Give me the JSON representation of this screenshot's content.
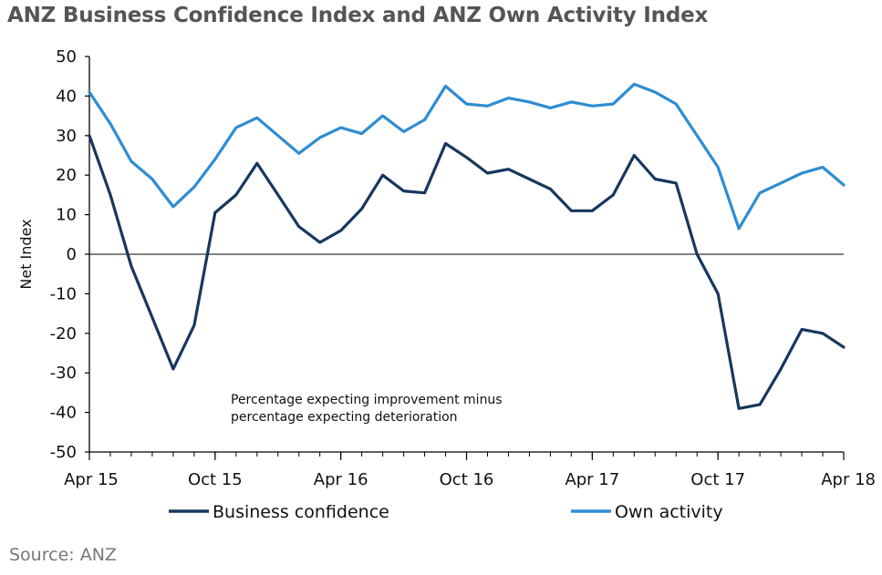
{
  "title": "ANZ Business Confidence Index and ANZ Own Activity Index",
  "source": "Source: ANZ",
  "chart_data": {
    "type": "line",
    "title": "ANZ Business Confidence Index and ANZ Own Activity Index",
    "xlabel": "",
    "ylabel": "Net Index",
    "ylim": [
      -50,
      50
    ],
    "yticks": [
      50,
      40,
      30,
      20,
      10,
      0,
      -10,
      -20,
      -30,
      -40,
      -50
    ],
    "xrange": [
      0,
      36
    ],
    "xticks": [
      {
        "x": 0,
        "label": "Apr 15"
      },
      {
        "x": 6,
        "label": "Oct 15"
      },
      {
        "x": 12,
        "label": "Apr 16"
      },
      {
        "x": 18,
        "label": "Oct 16"
      },
      {
        "x": 24,
        "label": "Apr 17"
      },
      {
        "x": 30,
        "label": "Oct 17"
      },
      {
        "x": 36,
        "label": "Apr 18"
      }
    ],
    "annotation": [
      "Percentage expecting improvement minus",
      "percentage expecting deterioration"
    ],
    "legend_position": "bottom",
    "series": [
      {
        "name": "Business confidence",
        "color": "#17375e",
        "x": [
          0,
          1,
          2,
          3,
          4,
          5,
          6,
          7,
          8,
          9,
          10,
          11,
          12,
          13,
          14,
          15,
          16,
          17,
          18,
          19,
          20,
          21,
          22,
          23,
          24,
          25,
          26,
          27,
          28,
          29,
          30,
          31,
          32,
          33,
          34,
          35,
          36
        ],
        "values": [
          30,
          15,
          -3,
          -16,
          -29,
          -18,
          10.5,
          15,
          23,
          15,
          7,
          3,
          6,
          11.5,
          20,
          16,
          15.5,
          28,
          24.5,
          20.5,
          21.5,
          19,
          16.5,
          11,
          11,
          15,
          25,
          19,
          18,
          0,
          -10,
          -39,
          -38,
          -29,
          -19,
          -20,
          -23.5
        ]
      },
      {
        "name": "Own activity",
        "color": "#2e8dd1",
        "x": [
          0,
          1,
          2,
          3,
          4,
          5,
          6,
          7,
          8,
          9,
          10,
          11,
          12,
          13,
          14,
          15,
          16,
          17,
          18,
          19,
          20,
          21,
          22,
          23,
          24,
          25,
          26,
          27,
          28,
          29,
          30,
          31,
          32,
          33,
          34,
          35,
          36
        ],
        "values": [
          41,
          33,
          23.5,
          19,
          12,
          17,
          24,
          32,
          34.5,
          30,
          25.5,
          29.5,
          32,
          30.5,
          35,
          31,
          34,
          42.5,
          38,
          37.5,
          39.5,
          38.5,
          37,
          38.5,
          37.5,
          38,
          43,
          41,
          38,
          30,
          22,
          6.5,
          15.5,
          18,
          20.5,
          22,
          17.5
        ]
      }
    ]
  }
}
